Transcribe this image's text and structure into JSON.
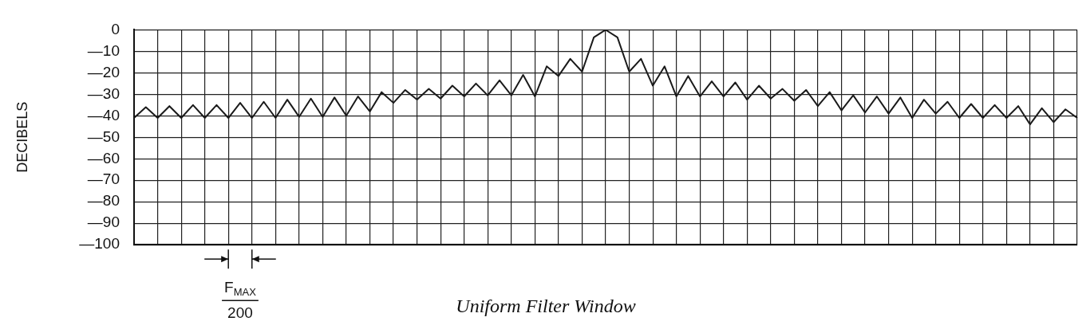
{
  "chart_data": {
    "type": "line",
    "title": "Uniform Filter Window",
    "ylabel": "DECIBELS",
    "annotations": [
      "F$_{MAX}$",
      "200"
    ],
    "categories": [
      null,
      null,
      null,
      null,
      null,
      null,
      null,
      null,
      null,
      null,
      null,
      null,
      null,
      null,
      null,
      null,
      null,
      null,
      null,
      null,
      null,
      null,
      null,
      null,
      null,
      null,
      null,
      null,
      null,
      null,
      null,
      null,
      null,
      null,
      null,
      null,
      null,
      null,
      null,
      null,
      null,
      null,
      null,
      null,
      null,
      null,
      null,
      null,
      null,
      null,
      null,
      null,
      null,
      null,
      null,
      null,
      null,
      null,
      null,
      null,
      null,
      null,
      null,
      null,
      null,
      null,
      null,
      null,
      null,
      null,
      null,
      null,
      null,
      null,
      null,
      null,
      null,
      null,
      null,
      null,
      null
    ],
    "series": [
      {
        "color": "#1a1a1a",
        "values": [
          -41,
          -36,
          -41,
          -35.5,
          -41,
          -35,
          -41,
          -35,
          -41,
          -34,
          -41,
          -33.5,
          -41,
          -32.5,
          -40.5,
          -32,
          -40.5,
          -31.5,
          -40,
          -31,
          -38,
          -29,
          -34,
          -28,
          -32.5,
          -27.5,
          -32,
          -26,
          -31,
          -25,
          -30.5,
          -23.5,
          -30.5,
          -21,
          -31,
          -17,
          -21.5,
          -13.5,
          -19.5,
          -3.5,
          0,
          -3.5,
          -19.5,
          -13.5,
          -26,
          -17,
          -31,
          -21.5,
          -31,
          -24,
          -31,
          -24.5,
          -32.5,
          -26,
          -32,
          -27.5,
          -33,
          -28,
          -35.5,
          -29,
          -37.5,
          -30.5,
          -38.5,
          -31,
          -39,
          -31.5,
          -41,
          -32.5,
          -39,
          -33.5,
          -41,
          -34.5,
          -41,
          -35,
          -41,
          -35.5,
          -44,
          -36.5,
          -43,
          -37,
          -41
        ]
      }
    ],
    "ylim": [
      -100,
      0
    ],
    "yticks": [
      0,
      {
        "value": -10,
        "label": "—10"
      },
      {
        "value": -20,
        "label": "—20"
      },
      {
        "value": -30,
        "label": "—30"
      },
      {
        "value": -40,
        "label": "—40"
      },
      {
        "value": -50,
        "label": "—50"
      },
      {
        "value": -60,
        "label": "—60"
      },
      {
        "value": -70,
        "label": "—70"
      },
      {
        "value": -80,
        "label": "—80"
      },
      {
        "value": -90,
        "label": "—90"
      },
      {
        "value": -100,
        "label": "—100"
      }
    ],
    "grid": true,
    "tick_labels": "y",
    "legend": false,
    "marker": "none",
    "line_style": "solid"
  }
}
